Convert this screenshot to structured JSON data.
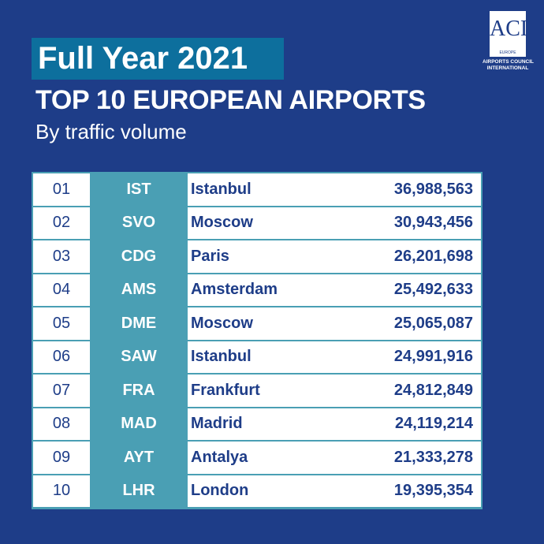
{
  "header": {
    "title": "Full Year 2021",
    "subtitle": "TOP 10 EUROPEAN AIRPORTS",
    "caption": "By traffic volume"
  },
  "logo": {
    "mark": "ACI",
    "region": "EUROPE",
    "name_line1": "AIRPORTS COUNCIL",
    "name_line2": "INTERNATIONAL"
  },
  "colors": {
    "background": "#1e3d88",
    "title_box": "#0d6f9d",
    "code_column": "#4a9fb4"
  },
  "table": {
    "rows": [
      {
        "rank": "01",
        "code": "IST",
        "city": "Istanbul",
        "passengers": "36,988,563"
      },
      {
        "rank": "02",
        "code": "SVO",
        "city": "Moscow",
        "passengers": "30,943,456"
      },
      {
        "rank": "03",
        "code": "CDG",
        "city": "Paris",
        "passengers": "26,201,698"
      },
      {
        "rank": "04",
        "code": "AMS",
        "city": "Amsterdam",
        "passengers": "25,492,633"
      },
      {
        "rank": "05",
        "code": "DME",
        "city": "Moscow",
        "passengers": "25,065,087"
      },
      {
        "rank": "06",
        "code": "SAW",
        "city": "Istanbul",
        "passengers": "24,991,916"
      },
      {
        "rank": "07",
        "code": "FRA",
        "city": "Frankfurt",
        "passengers": "24,812,849"
      },
      {
        "rank": "08",
        "code": "MAD",
        "city": "Madrid",
        "passengers": "24,119,214"
      },
      {
        "rank": "09",
        "code": "AYT",
        "city": "Antalya",
        "passengers": "21,333,278"
      },
      {
        "rank": "10",
        "code": "LHR",
        "city": "London",
        "passengers": "19,395,354"
      }
    ]
  }
}
